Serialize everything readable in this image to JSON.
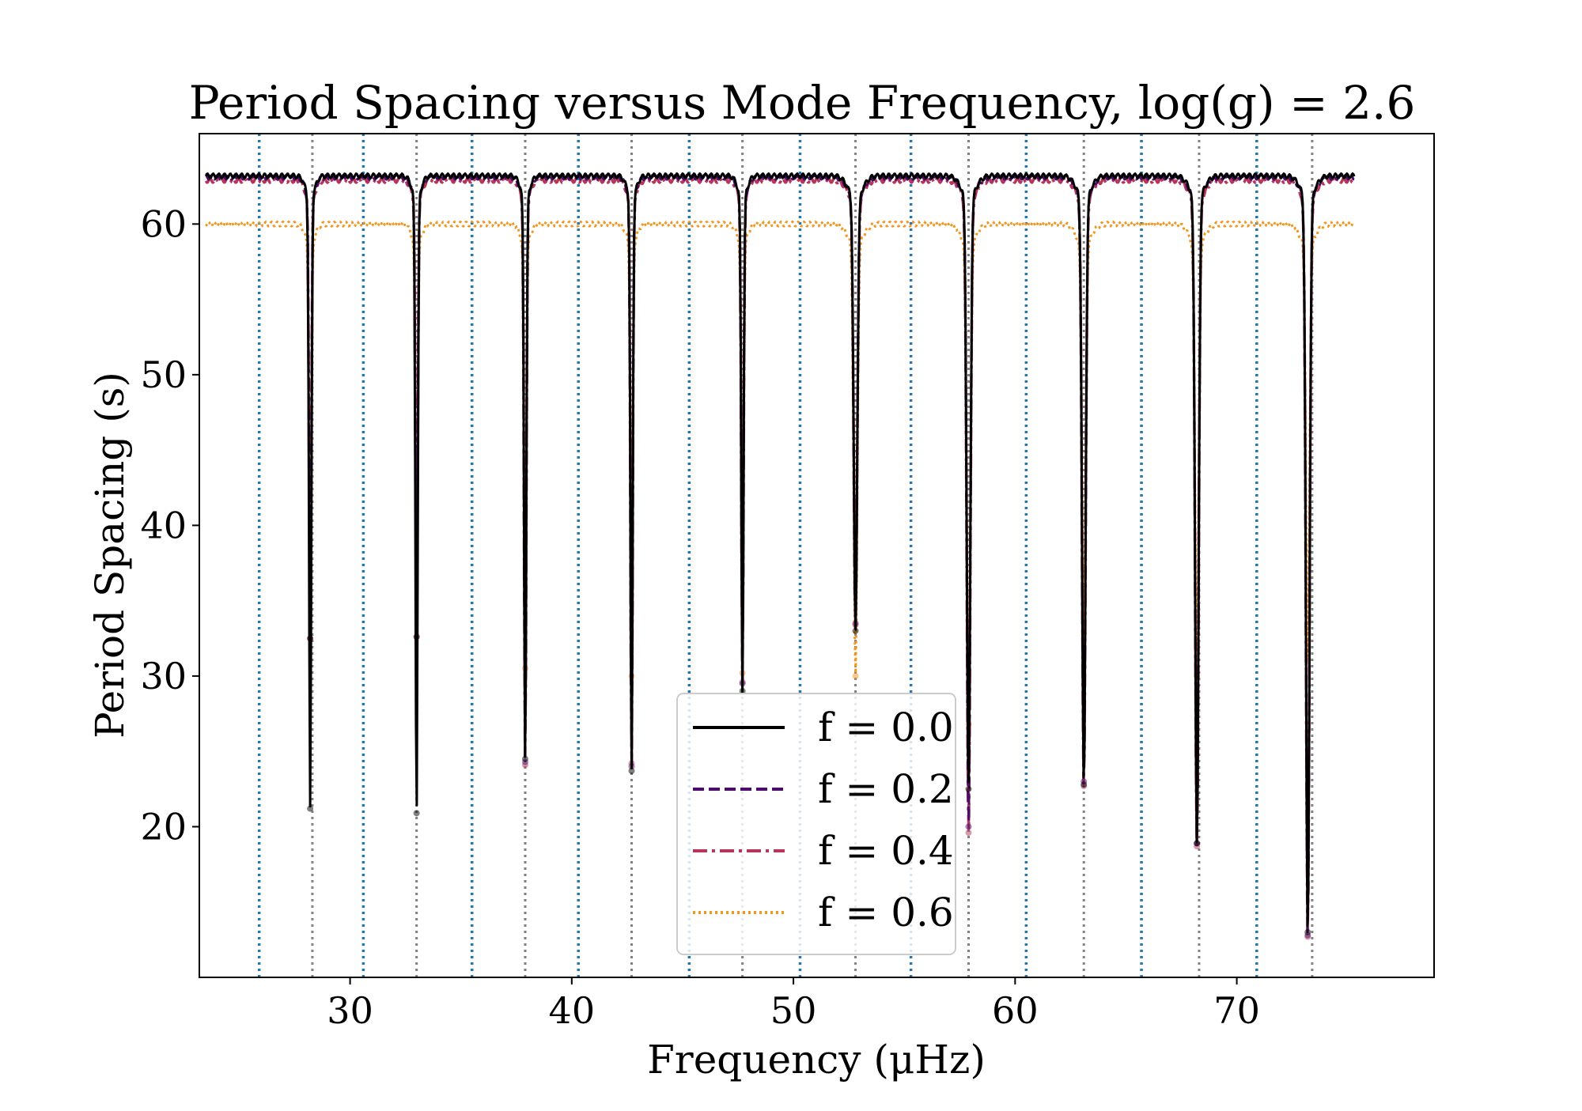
{
  "chart_data": {
    "type": "line",
    "title": "Period Spacing versus Mode Frequency, log(g) = 2.6",
    "xlabel": "Frequency (μHz)",
    "ylabel": "Period Spacing (s)",
    "xlim": [
      23.2,
      78.9
    ],
    "ylim": [
      10,
      66
    ],
    "xticks": [
      30,
      40,
      50,
      60,
      70
    ],
    "yticks": [
      20,
      30,
      40,
      50,
      60
    ],
    "grid": false,
    "legend_position": "lower center",
    "vlines_blue_dotted": [
      25.9,
      30.6,
      35.5,
      40.3,
      45.3,
      50.3,
      55.3,
      60.5,
      65.7,
      70.9
    ],
    "vlines_gray_dotted": [
      28.3,
      33.0,
      37.9,
      42.7,
      47.7,
      52.8,
      57.9,
      63.1,
      68.3,
      73.4
    ],
    "x_range": [
      23.5,
      75.3
    ],
    "series": [
      {
        "name": "f = 0.0",
        "color": "#000000",
        "dash": "solid",
        "plateau": 63.2,
        "dips": [
          {
            "x": 28.2,
            "min": 21.2
          },
          {
            "x": 33.0,
            "min": 20.9
          },
          {
            "x": 37.9,
            "min": 24.5
          },
          {
            "x": 42.7,
            "min": 23.7
          },
          {
            "x": 47.7,
            "min": 29.0
          },
          {
            "x": 52.8,
            "min": 33.0
          },
          {
            "x": 57.9,
            "min": 22.5
          },
          {
            "x": 63.1,
            "min": 22.8
          },
          {
            "x": 68.2,
            "min": 18.9
          },
          {
            "x": 73.2,
            "min": 13.0
          }
        ]
      },
      {
        "name": "f = 0.2",
        "color": "#4b0c6b",
        "dash": "dashed",
        "plateau": 63.1,
        "dips": [
          {
            "x": 28.2,
            "min": 32.5
          },
          {
            "x": 33.0,
            "min": 32.6
          },
          {
            "x": 37.9,
            "min": 24.3
          },
          {
            "x": 42.7,
            "min": 24.0
          },
          {
            "x": 47.7,
            "min": 29.5
          },
          {
            "x": 52.8,
            "min": 33.5
          },
          {
            "x": 57.9,
            "min": 20.0
          },
          {
            "x": 63.1,
            "min": 23.0
          },
          {
            "x": 68.2,
            "min": 18.9
          },
          {
            "x": 73.2,
            "min": 12.8
          }
        ]
      },
      {
        "name": "f = 0.4",
        "color": "#b5365a",
        "dash": "dashdot",
        "plateau": 62.9,
        "dips": [
          {
            "x": 28.2,
            "min": 32.5
          },
          {
            "x": 33.0,
            "min": 32.6
          },
          {
            "x": 37.9,
            "min": 24.1
          },
          {
            "x": 42.7,
            "min": 24.2
          },
          {
            "x": 47.7,
            "min": 29.6
          },
          {
            "x": 52.8,
            "min": 33.4
          },
          {
            "x": 57.9,
            "min": 19.6
          },
          {
            "x": 63.1,
            "min": 22.7
          },
          {
            "x": 68.2,
            "min": 18.7
          },
          {
            "x": 73.2,
            "min": 12.7
          }
        ]
      },
      {
        "name": "f = 0.6",
        "color": "#f1961f",
        "dash": "dotted",
        "plateau": 60.0,
        "dips": [
          {
            "x": 28.2,
            "min": 32.5
          },
          {
            "x": 33.0,
            "min": 32.6
          },
          {
            "x": 37.9,
            "min": 30.5
          },
          {
            "x": 42.7,
            "min": 30.0
          },
          {
            "x": 47.7,
            "min": 30.2
          },
          {
            "x": 52.8,
            "min": 30.0
          },
          {
            "x": 57.9,
            "min": 26.8
          },
          {
            "x": 63.1,
            "min": 32.8
          },
          {
            "x": 68.2,
            "min": 30.0
          },
          {
            "x": 73.2,
            "min": 31.0
          }
        ]
      }
    ]
  }
}
